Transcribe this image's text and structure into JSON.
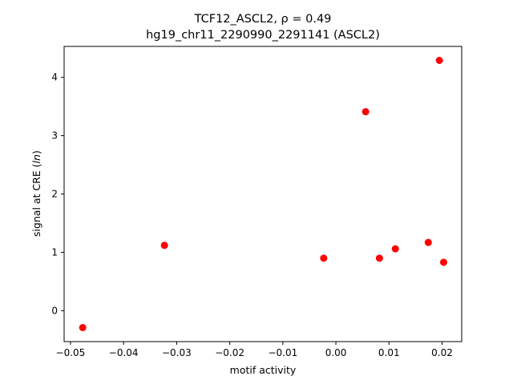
{
  "chart_data": {
    "type": "scatter",
    "title": "TCF12_ASCL2, ρ = 0.49",
    "subtitle": "hg19_chr11_2290990_2291141 (ASCL2)",
    "xlabel": "motif activity",
    "ylabel_prefix": "signal at CRE (",
    "ylabel_italic": "ln",
    "ylabel_suffix": ")",
    "xlim": [
      -0.0512,
      0.0237
    ],
    "ylim": [
      -0.53,
      4.53
    ],
    "x_ticks": [
      -0.05,
      -0.04,
      -0.03,
      -0.02,
      -0.01,
      0.0,
      0.01,
      0.02
    ],
    "x_tick_labels": [
      "−0.05",
      "−0.04",
      "−0.03",
      "−0.02",
      "−0.01",
      "0.00",
      "0.01",
      "0.02"
    ],
    "y_ticks": [
      0,
      1,
      2,
      3,
      4
    ],
    "y_tick_labels": [
      "0",
      "1",
      "2",
      "3",
      "4"
    ],
    "grid": false,
    "marker_color": "#ff0000",
    "points": [
      {
        "x": -0.0477,
        "y": -0.29
      },
      {
        "x": -0.0323,
        "y": 1.12
      },
      {
        "x": -0.0023,
        "y": 0.9
      },
      {
        "x": 0.0056,
        "y": 3.41
      },
      {
        "x": 0.0082,
        "y": 0.9
      },
      {
        "x": 0.0112,
        "y": 1.06
      },
      {
        "x": 0.0174,
        "y": 1.17
      },
      {
        "x": 0.0195,
        "y": 4.29
      },
      {
        "x": 0.0203,
        "y": 0.83
      }
    ]
  }
}
